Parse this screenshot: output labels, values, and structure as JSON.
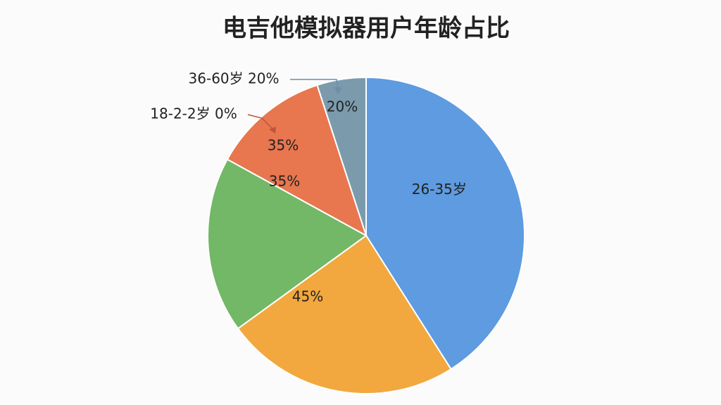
{
  "chart_data": {
    "type": "pie",
    "title": "电吉他模拟器用户年龄占比",
    "categories": [
      "26-35岁",
      null,
      null,
      null,
      null
    ],
    "values": [
      41,
      24,
      18,
      12,
      5
    ],
    "colors": [
      "#5e9be0",
      "#f2a83e",
      "#72b866",
      "#e8764f",
      "#7b9bad"
    ],
    "annotations": [
      "36-60岁 20%",
      "18-2-2岁 0%",
      "20%",
      "35%",
      "35%",
      "45%"
    ]
  }
}
